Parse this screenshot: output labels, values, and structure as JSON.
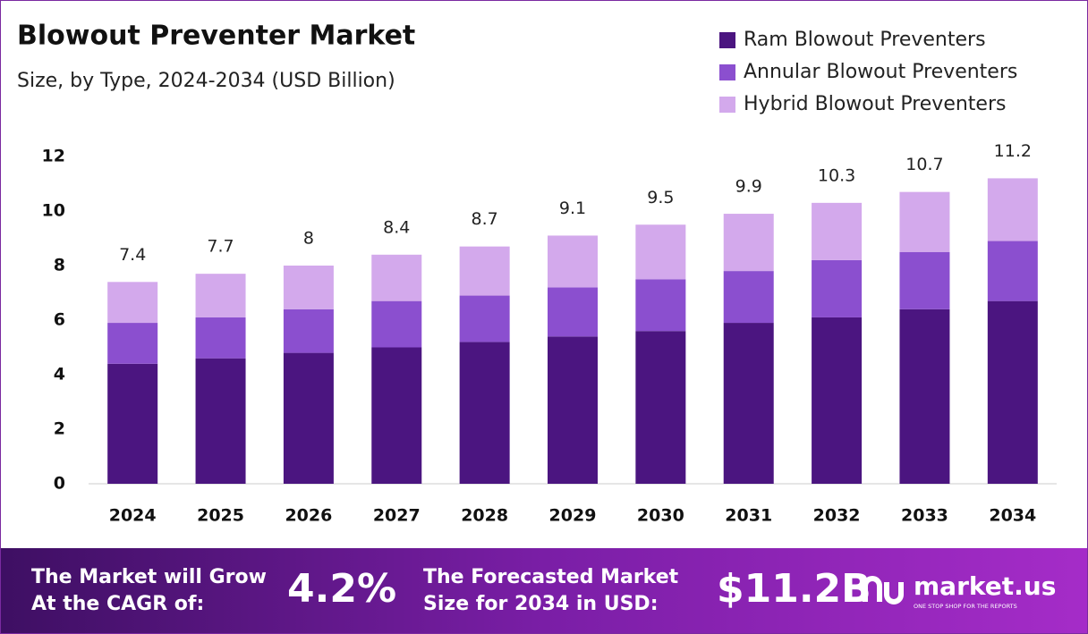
{
  "chart_data": {
    "type": "stacked-bar",
    "title": "Blowout Preventer Market",
    "subtitle": "Size, by Type, 2024-2034 (USD Billion)",
    "categories": [
      "2024",
      "2025",
      "2026",
      "2027",
      "2028",
      "2029",
      "2030",
      "2031",
      "2032",
      "2033",
      "2034"
    ],
    "series": [
      {
        "name": "Ram Blowout Preventers",
        "color": "#4b1580",
        "values": [
          4.4,
          4.6,
          4.8,
          5.0,
          5.2,
          5.4,
          5.6,
          5.9,
          6.1,
          6.4,
          6.7
        ]
      },
      {
        "name": "Annular Blowout Preventers",
        "color": "#8b4fcf",
        "values": [
          1.5,
          1.5,
          1.6,
          1.7,
          1.7,
          1.8,
          1.9,
          1.9,
          2.1,
          2.1,
          2.2
        ]
      },
      {
        "name": "Hybrid Blowout Preventers",
        "color": "#d3a9ec",
        "values": [
          1.5,
          1.6,
          1.6,
          1.7,
          1.8,
          1.9,
          2.0,
          2.1,
          2.1,
          2.2,
          2.3
        ]
      }
    ],
    "totals": [
      7.4,
      7.7,
      8.0,
      8.4,
      8.7,
      9.1,
      9.5,
      9.9,
      10.3,
      10.7,
      11.2
    ],
    "ylim": [
      0,
      12
    ],
    "yticks": [
      0,
      2,
      4,
      6,
      8,
      10,
      12
    ],
    "grid": false,
    "legend": "top-right"
  },
  "footer": {
    "cagr_text": [
      "The Market will Grow",
      "At the CAGR of:"
    ],
    "cagr": "4.2%",
    "forecast_text": [
      "The Forecasted Market",
      "Size for 2034 in USD:"
    ],
    "forecast": "$11.2B",
    "brand": "market.us",
    "tagline": "ONE STOP SHOP FOR THE REPORTS"
  }
}
